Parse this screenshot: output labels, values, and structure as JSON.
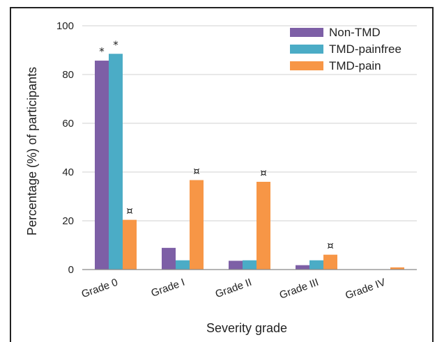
{
  "chart_data": {
    "type": "bar",
    "title": "",
    "xlabel": "Severity grade",
    "ylabel": "Percentage (%) of participants",
    "ylim": [
      0,
      100
    ],
    "yticks": [
      0,
      20,
      40,
      60,
      80,
      100
    ],
    "grid": true,
    "legend_position": "top-right",
    "categories": [
      "Grade 0",
      "Grade I",
      "Grade II",
      "Grade III",
      "Grade IV"
    ],
    "series": [
      {
        "name": "Non-TMD",
        "color": "#7d5fa6",
        "values": [
          85.7,
          8.9,
          3.6,
          1.8,
          0
        ],
        "annotations": [
          "*",
          "",
          "",
          "",
          ""
        ]
      },
      {
        "name": "TMD-painfree",
        "color": "#4bacc6",
        "values": [
          88.5,
          3.8,
          3.8,
          3.8,
          0
        ],
        "annotations": [
          "*",
          "",
          "",
          "",
          ""
        ]
      },
      {
        "name": "TMD-pain",
        "color": "#f79646",
        "values": [
          20.4,
          36.7,
          36.0,
          6.1,
          0.9
        ],
        "annotations": [
          "¤",
          "¤",
          "¤",
          "¤",
          ""
        ]
      }
    ]
  }
}
